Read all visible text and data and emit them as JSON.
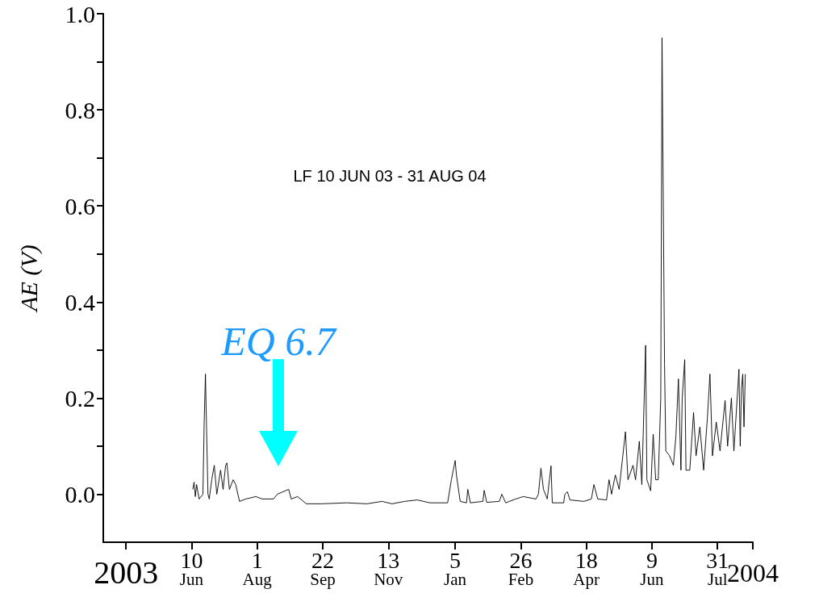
{
  "chart_data": {
    "type": "line",
    "title": "LF 10 JUN 03 - 31 AUG 04",
    "ylabel": "AE (V)",
    "x": [
      "2003-06-11",
      "2003-06-12",
      "2003-06-13",
      "2003-06-14",
      "2003-06-16",
      "2003-06-19",
      "2003-06-20",
      "2003-06-21",
      "2003-06-22",
      "2003-06-23",
      "2003-06-24",
      "2003-06-26",
      "2003-06-28",
      "2003-06-30",
      "2003-07-03",
      "2003-07-05",
      "2003-07-07",
      "2003-07-08",
      "2003-07-10",
      "2003-07-13",
      "2003-07-15",
      "2003-07-18",
      "2003-07-23",
      "2003-07-31",
      "2003-08-05",
      "2003-08-14",
      "2003-08-17",
      "2003-08-26",
      "2003-08-28",
      "2003-09-02",
      "2003-09-09",
      "2003-09-21",
      "2003-10-11",
      "2003-10-27",
      "2003-11-08",
      "2003-11-16",
      "2003-11-26",
      "2003-12-06",
      "2003-12-16",
      "2003-12-30",
      "2004-01-02",
      "2004-01-05",
      "2004-01-06",
      "2004-01-09",
      "2004-01-14",
      "2004-01-15",
      "2004-01-17",
      "2004-01-27",
      "2004-01-28",
      "2004-01-30",
      "2004-02-09",
      "2004-02-11",
      "2004-02-14",
      "2004-02-22",
      "2004-02-28",
      "2004-03-09",
      "2004-03-11",
      "2004-03-13",
      "2004-03-15",
      "2004-03-18",
      "2004-03-21",
      "2004-03-22",
      "2004-03-31",
      "2004-04-01",
      "2004-04-03",
      "2004-04-05",
      "2004-04-16",
      "2004-04-22",
      "2004-04-24",
      "2004-04-27",
      "2004-05-04",
      "2004-05-06",
      "2004-05-08",
      "2004-05-11",
      "2004-05-14",
      "2004-05-19",
      "2004-05-21",
      "2004-05-25",
      "2004-05-27",
      "2004-05-30",
      "2004-06-01",
      "2004-06-04",
      "2004-06-05",
      "2004-06-08",
      "2004-06-10",
      "2004-06-12",
      "2004-06-14",
      "2004-06-16",
      "2004-06-17",
      "2004-06-19",
      "2004-06-20",
      "2004-06-23",
      "2004-06-26",
      "2004-06-28",
      "2004-06-30",
      "2004-07-02",
      "2004-07-03",
      "2004-07-05",
      "2004-07-06",
      "2004-07-09",
      "2004-07-12",
      "2004-07-14",
      "2004-07-17",
      "2004-07-20",
      "2004-07-23",
      "2004-07-25",
      "2004-07-27",
      "2004-07-30",
      "2004-08-02",
      "2004-08-06",
      "2004-08-08",
      "2004-08-11",
      "2004-08-13",
      "2004-08-17",
      "2004-08-18",
      "2004-08-19",
      "2004-08-20",
      "2004-08-21",
      "2004-08-22"
    ],
    "series": [
      {
        "color": "#000000",
        "values": [
          0.01,
          0.025,
          -0.005,
          0.02,
          -0.01,
          0.0,
          0.15,
          0.25,
          0.12,
          0.0,
          -0.01,
          0.03,
          0.06,
          0.0,
          0.05,
          0.01,
          0.06,
          0.065,
          0.01,
          0.03,
          0.02,
          -0.015,
          -0.01,
          -0.005,
          -0.01,
          -0.01,
          0.0,
          0.01,
          -0.01,
          -0.005,
          -0.02,
          -0.02,
          -0.018,
          -0.02,
          -0.015,
          -0.02,
          -0.015,
          -0.012,
          -0.018,
          -0.018,
          0.03,
          0.07,
          0.04,
          -0.015,
          -0.018,
          0.01,
          -0.018,
          -0.015,
          0.008,
          -0.017,
          -0.015,
          0.0,
          -0.018,
          -0.01,
          -0.005,
          -0.01,
          0.0,
          0.054,
          0.01,
          -0.01,
          0.059,
          -0.018,
          -0.018,
          0.0,
          0.005,
          -0.012,
          -0.015,
          -0.01,
          0.02,
          -0.01,
          -0.012,
          0.03,
          0.0,
          0.04,
          0.01,
          0.13,
          0.03,
          0.06,
          0.03,
          0.11,
          0.02,
          0.31,
          0.03,
          0.007,
          0.125,
          0.03,
          0.03,
          0.2,
          0.95,
          0.27,
          0.09,
          0.08,
          0.06,
          0.12,
          0.24,
          0.05,
          0.2,
          0.28,
          0.05,
          0.05,
          0.17,
          0.08,
          0.14,
          0.05,
          0.16,
          0.25,
          0.08,
          0.15,
          0.09,
          0.195,
          0.1,
          0.2,
          0.09,
          0.26,
          0.1,
          0.22,
          0.25,
          0.14,
          0.25
        ]
      }
    ],
    "xlim": [
      "2003-04-01",
      "2004-08-28"
    ],
    "xticks": [
      {
        "value": "2003-04-19",
        "label": "2003"
      },
      {
        "value": "2003-06-10",
        "label": "10\nJun"
      },
      {
        "value": "2003-08-01",
        "label": "1\nAug"
      },
      {
        "value": "2003-09-22",
        "label": "22\nSep"
      },
      {
        "value": "2003-11-13",
        "label": "13\nNov"
      },
      {
        "value": "2004-01-05",
        "label": "5\nJan"
      },
      {
        "value": "2004-02-26",
        "label": "26\nFeb"
      },
      {
        "value": "2004-04-18",
        "label": "18\nApr"
      },
      {
        "value": "2004-06-09",
        "label": "9\nJun"
      },
      {
        "value": "2004-07-31",
        "label": "31\nJul"
      },
      {
        "value": "2004-08-28",
        "label": "2004"
      }
    ],
    "ylim": [
      -0.1,
      1.0
    ],
    "yticks": [
      {
        "value": 0,
        "label": "0.0"
      },
      {
        "value": 0.1,
        "label": null
      },
      {
        "value": 0.2,
        "label": "0.2"
      },
      {
        "value": 0.3,
        "label": null
      },
      {
        "value": 0.4,
        "label": "0.4"
      },
      {
        "value": 0.5,
        "label": null
      },
      {
        "value": 0.6,
        "label": "0.6"
      },
      {
        "value": 0.7,
        "label": null
      },
      {
        "value": 0.8,
        "label": "0.8"
      },
      {
        "value": 0.9,
        "label": null
      },
      {
        "value": 1.0,
        "label": "1.0"
      }
    ],
    "grid": false,
    "marker": "none",
    "line_style": "solid",
    "annotations": [
      "EQ 6.7"
    ]
  }
}
